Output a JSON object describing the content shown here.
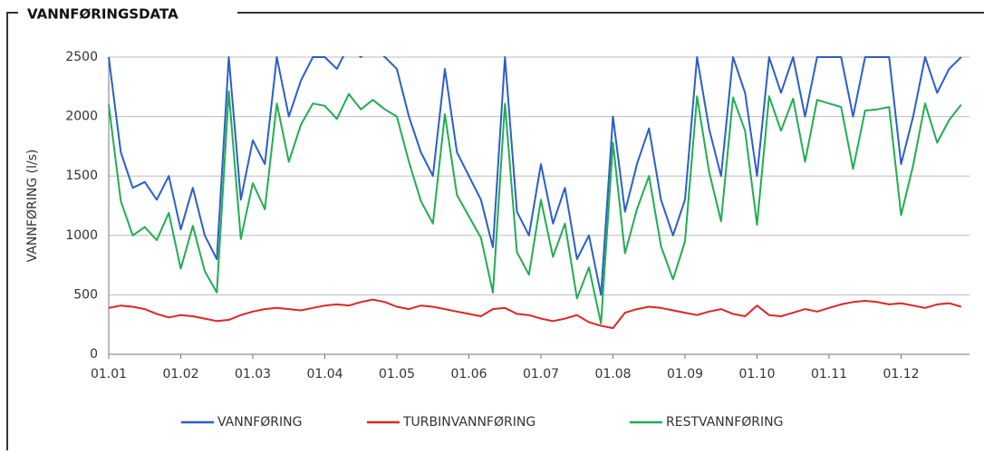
{
  "chart_data": {
    "type": "line",
    "title": "VANNFØRINGSDATA",
    "y_label": "VANNFØRING (l/s)",
    "categories": [
      "01.01",
      null,
      null,
      null,
      null,
      null,
      "01.02",
      null,
      null,
      null,
      null,
      null,
      "01.03",
      null,
      null,
      null,
      null,
      null,
      "01.04",
      null,
      null,
      null,
      null,
      null,
      "01.05",
      null,
      null,
      null,
      null,
      null,
      "01.06",
      null,
      null,
      null,
      null,
      null,
      "01.07",
      null,
      null,
      null,
      null,
      null,
      "01.08",
      null,
      null,
      null,
      null,
      null,
      "01.09",
      null,
      null,
      null,
      null,
      null,
      "01.10",
      null,
      null,
      null,
      null,
      null,
      "01.11",
      null,
      null,
      null,
      null,
      null,
      "01.12",
      null,
      null,
      null,
      null,
      null
    ],
    "series": [
      {
        "name": "VANNFØRING",
        "color": "#2b5fc7",
        "values": [
          2500,
          1700,
          1400,
          1450,
          1300,
          1500,
          1050,
          1400,
          1000,
          800,
          2500,
          1300,
          1800,
          1600,
          2500,
          2000,
          2300,
          2500,
          2500,
          2400,
          2600,
          2500,
          2600,
          2500,
          2400,
          2000,
          1700,
          1500,
          2400,
          1700,
          1500,
          1300,
          900,
          2500,
          1200,
          1000,
          1600,
          1100,
          1400,
          800,
          1000,
          500,
          2000,
          1200,
          1600,
          1900,
          1300,
          1000,
          1300,
          2500,
          1900,
          1500,
          2500,
          2200,
          1500,
          2500,
          2200,
          2500,
          2000,
          2500,
          2500,
          2500,
          2000,
          2500,
          2500,
          2500,
          1600,
          2000,
          2500,
          2200,
          2400,
          2500
        ]
      },
      {
        "name": "TURBINVANNFØRING",
        "color": "#e02424",
        "values": [
          390,
          410,
          400,
          380,
          340,
          310,
          330,
          320,
          300,
          280,
          290,
          330,
          360,
          380,
          390,
          380,
          370,
          390,
          410,
          420,
          410,
          440,
          460,
          440,
          400,
          380,
          410,
          400,
          380,
          360,
          340,
          320,
          380,
          390,
          340,
          330,
          300,
          280,
          300,
          330,
          270,
          240,
          220,
          350,
          380,
          400,
          390,
          370,
          350,
          330,
          360,
          380,
          340,
          320,
          410,
          330,
          320,
          350,
          380,
          360,
          390,
          420,
          440,
          450,
          440,
          420,
          430,
          410,
          390,
          420,
          430,
          400
        ]
      },
      {
        "name": "RESTVANNFØRING",
        "color": "#21ad52",
        "values": [
          2100,
          1290,
          1000,
          1070,
          960,
          1190,
          720,
          1080,
          700,
          520,
          2210,
          970,
          1440,
          1220,
          2110,
          1620,
          1930,
          2110,
          2090,
          1980,
          2190,
          2060,
          2140,
          2060,
          2000,
          1620,
          1290,
          1100,
          2020,
          1340,
          1160,
          980,
          520,
          2110,
          860,
          670,
          1300,
          820,
          1100,
          470,
          730,
          260,
          1780,
          850,
          1220,
          1500,
          910,
          630,
          950,
          2170,
          1540,
          1120,
          2160,
          1880,
          1090,
          2170,
          1880,
          2150,
          1620,
          2140,
          2110,
          2080,
          1560,
          2050,
          2060,
          2080,
          1170,
          1590,
          2110,
          1780,
          1970,
          2100
        ]
      }
    ],
    "ylim": [
      0,
      2500
    ],
    "yticks": [
      0,
      500,
      1000,
      1500,
      2000,
      2500
    ],
    "grid": true,
    "legend": "bottom"
  }
}
